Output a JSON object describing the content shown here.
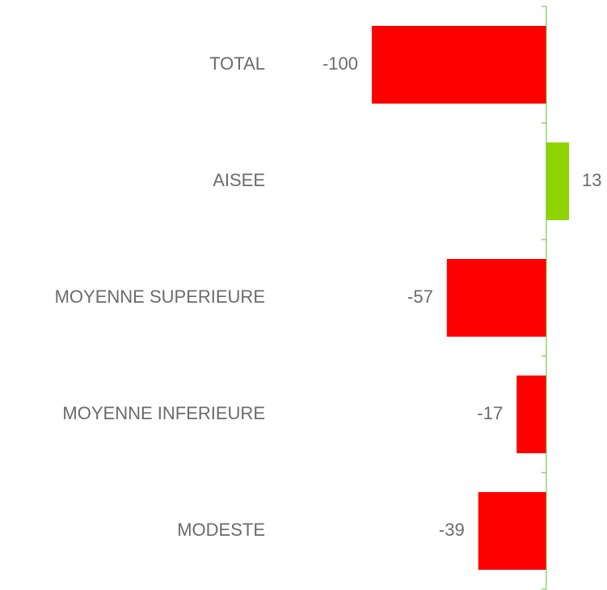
{
  "chart_data": {
    "type": "hbar",
    "categories": [
      "TOTAL",
      "AISEE",
      "MOYENNE SUPERIEURE",
      "MOYENNE INFERIEURE",
      "MODESTE"
    ],
    "values": [
      -100,
      13,
      -57,
      -17,
      -39
    ],
    "colors": [
      "#ff0000",
      "#8fd400",
      "#ff0000",
      "#ff0000",
      "#ff0000"
    ],
    "axis_color": "#5cbf2a",
    "xlim": [
      -100,
      13
    ]
  }
}
